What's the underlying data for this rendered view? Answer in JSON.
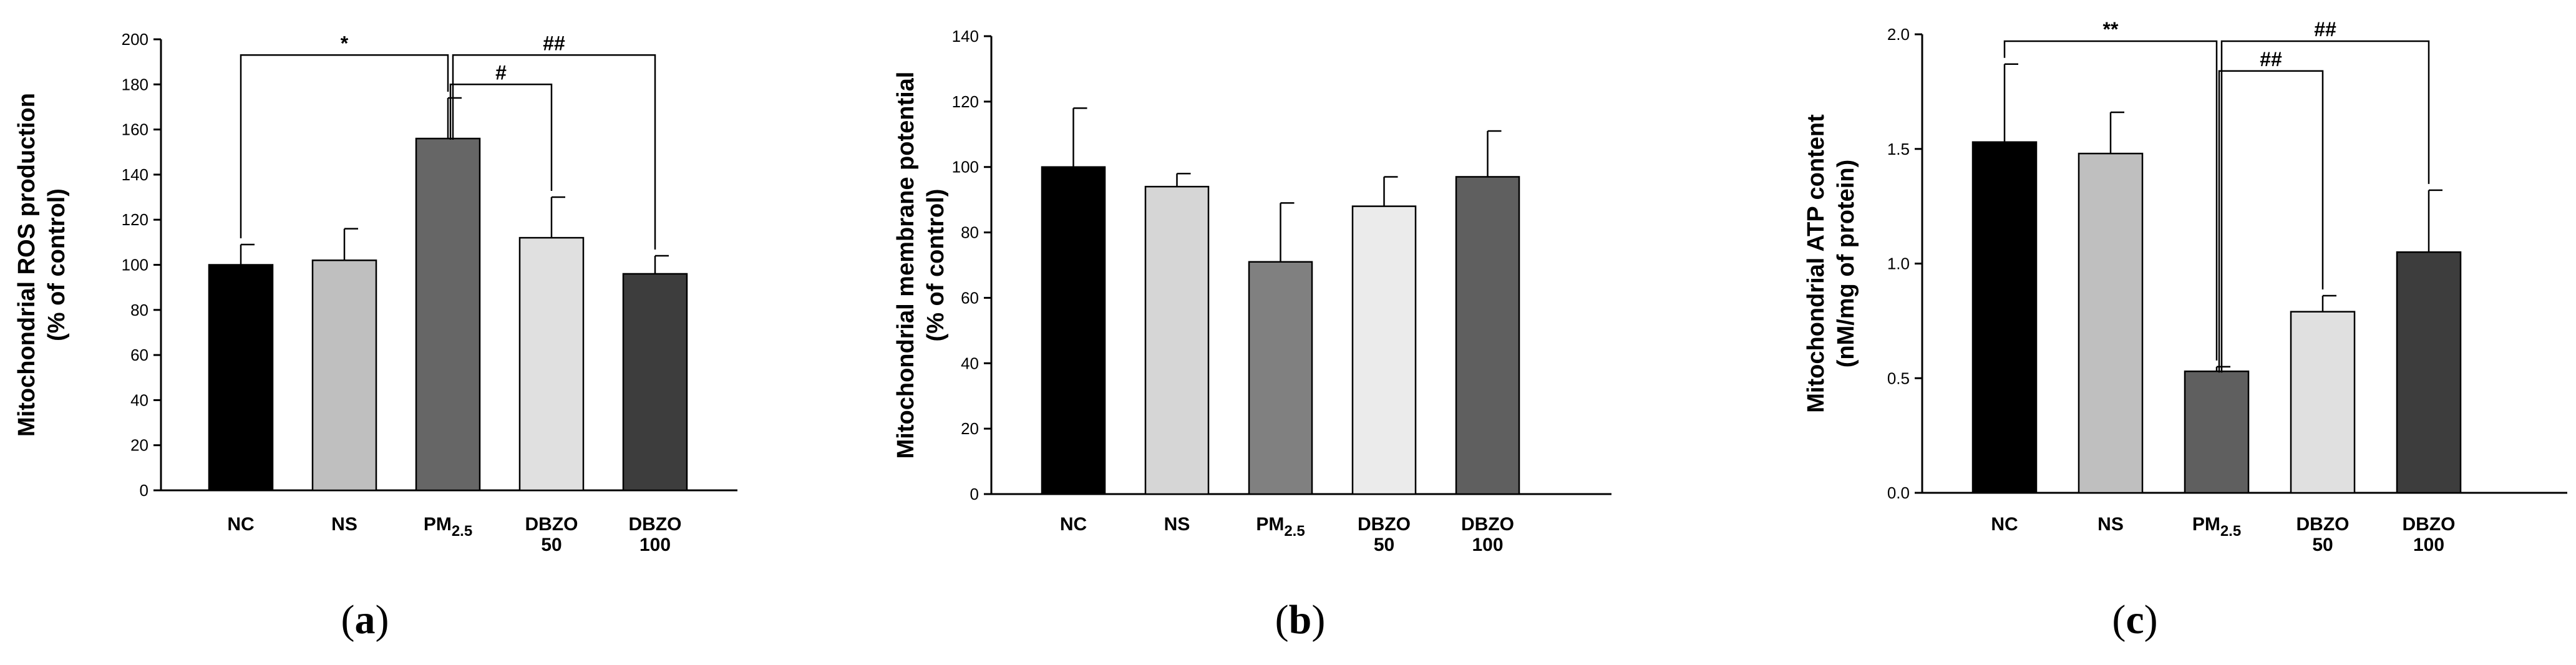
{
  "figure": {
    "panel_labels": [
      "(a)",
      "(b)",
      "(c)"
    ]
  },
  "chart_data": [
    {
      "type": "bar",
      "panel": "a",
      "categories": [
        "NC",
        "NS",
        "PM2.5",
        "DBZO 50",
        "DBZO 100"
      ],
      "category_labels": [
        {
          "main": "NC"
        },
        {
          "main": "NS"
        },
        {
          "main": "PM",
          "sub": "2.5"
        },
        {
          "main": "DBZO",
          "line2": "50"
        },
        {
          "main": "DBZO",
          "line2": "100"
        }
      ],
      "values": [
        100,
        102,
        156,
        112,
        96
      ],
      "errors": [
        9,
        14,
        18,
        18,
        8
      ],
      "colors": [
        "#000000",
        "#bfbfbf",
        "#666666",
        "#e0e0e0",
        "#3d3d3d"
      ],
      "ylabel_line1": "Mitochondrial ROS production",
      "ylabel_line2": "(% of control)",
      "ylim": [
        0,
        200
      ],
      "yticks": [
        0,
        20,
        40,
        60,
        80,
        100,
        120,
        140,
        160,
        180,
        200
      ],
      "tick_decimals": 0,
      "annotations": [
        {
          "from": 0,
          "to": 2,
          "label": "*",
          "level": 193
        },
        {
          "from": 2,
          "to": 3,
          "label": "#",
          "level": 180
        },
        {
          "from": 2,
          "to": 4,
          "label": "##",
          "level": 193
        }
      ]
    },
    {
      "type": "bar",
      "panel": "b",
      "categories": [
        "NC",
        "NS",
        "PM2.5",
        "DBZO 50",
        "DBZO 100"
      ],
      "category_labels": [
        {
          "main": "NC"
        },
        {
          "main": "NS"
        },
        {
          "main": "PM",
          "sub": "2.5"
        },
        {
          "main": "DBZO",
          "line2": "50"
        },
        {
          "main": "DBZO",
          "line2": "100"
        }
      ],
      "values": [
        100,
        94,
        71,
        88,
        97
      ],
      "errors": [
        18,
        4,
        18,
        9,
        14
      ],
      "colors": [
        "#000000",
        "#d6d6d6",
        "#808080",
        "#ebebeb",
        "#5f5f5f"
      ],
      "ylabel_line1": "Mitochondrial membrane potential",
      "ylabel_line2": "(% of control)",
      "ylim": [
        0,
        140
      ],
      "yticks": [
        0,
        20,
        40,
        60,
        80,
        100,
        120,
        140
      ],
      "tick_decimals": 0,
      "annotations": []
    },
    {
      "type": "bar",
      "panel": "c",
      "categories": [
        "NC",
        "NS",
        "PM2.5",
        "DBZO 50",
        "DBZO 100"
      ],
      "category_labels": [
        {
          "main": "NC"
        },
        {
          "main": "NS"
        },
        {
          "main": "PM",
          "sub": "2.5"
        },
        {
          "main": "DBZO",
          "line2": "50"
        },
        {
          "main": "DBZO",
          "line2": "100"
        }
      ],
      "values": [
        1.53,
        1.48,
        0.53,
        0.79,
        1.05
      ],
      "errors": [
        0.34,
        0.18,
        0.02,
        0.07,
        0.27
      ],
      "colors": [
        "#000000",
        "#bfbfbf",
        "#5f5f5f",
        "#e0e0e0",
        "#3d3d3d"
      ],
      "ylabel_line1": "Mitochondrial ATP content",
      "ylabel_line2": "(nM/mg of protein)",
      "ylim": [
        0,
        2.0
      ],
      "yticks": [
        0.0,
        0.5,
        1.0,
        1.5,
        2.0
      ],
      "tick_decimals": 1,
      "annotations": [
        {
          "from": 0,
          "to": 2,
          "label": "**",
          "level": 1.97
        },
        {
          "from": 2,
          "to": 3,
          "label": "##",
          "level": 1.84
        },
        {
          "from": 2,
          "to": 4,
          "label": "##",
          "level": 1.97
        }
      ]
    }
  ]
}
